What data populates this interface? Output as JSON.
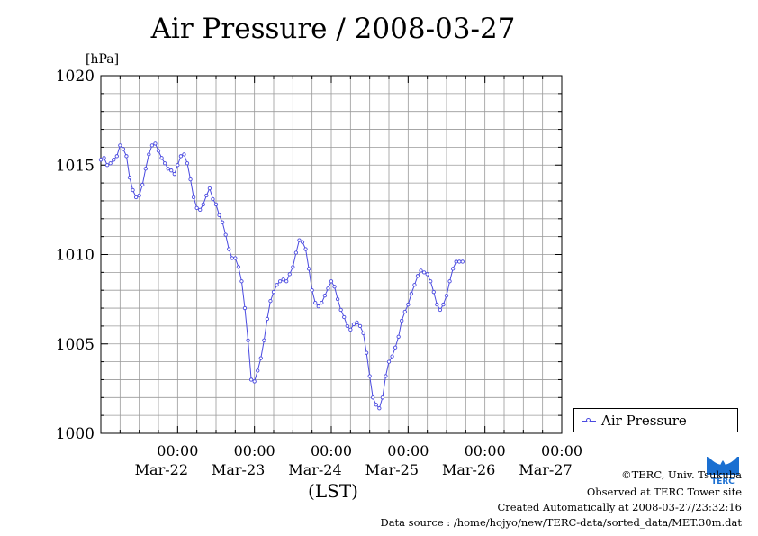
{
  "chart_data": {
    "type": "line",
    "title": "Air Pressure / 2008-03-27",
    "ylabel_unit": "[hPa]",
    "xlabel": "(LST)",
    "ylim": [
      1000,
      1020
    ],
    "yticks": [
      1000,
      1005,
      1010,
      1015,
      1020
    ],
    "x_range_hours": [
      0,
      144
    ],
    "x_ticks": [
      {
        "time": "00:00",
        "date": "Mar-22",
        "hour": 24
      },
      {
        "time": "00:00",
        "date": "Mar-23",
        "hour": 48
      },
      {
        "time": "00:00",
        "date": "Mar-24",
        "hour": 72
      },
      {
        "time": "00:00",
        "date": "Mar-25",
        "hour": 96
      },
      {
        "time": "00:00",
        "date": "Mar-26",
        "hour": 120
      },
      {
        "time": "00:00",
        "date": "Mar-27",
        "hour": 144
      }
    ],
    "grid": true,
    "legend_position": "right",
    "series": [
      {
        "name": "Air Pressure",
        "color": "#4a4ae0",
        "points": [
          [
            0,
            1015.3
          ],
          [
            1,
            1015.4
          ],
          [
            2,
            1015.0
          ],
          [
            3,
            1015.1
          ],
          [
            4,
            1015.3
          ],
          [
            5,
            1015.5
          ],
          [
            6,
            1016.1
          ],
          [
            7,
            1015.9
          ],
          [
            8,
            1015.5
          ],
          [
            9,
            1014.3
          ],
          [
            10,
            1013.6
          ],
          [
            11,
            1013.2
          ],
          [
            12,
            1013.3
          ],
          [
            13,
            1013.9
          ],
          [
            14,
            1014.8
          ],
          [
            15,
            1015.6
          ],
          [
            16,
            1016.1
          ],
          [
            17,
            1016.2
          ],
          [
            18,
            1015.8
          ],
          [
            19,
            1015.4
          ],
          [
            20,
            1015.1
          ],
          [
            21,
            1014.8
          ],
          [
            22,
            1014.7
          ],
          [
            23,
            1014.5
          ],
          [
            24,
            1015.0
          ],
          [
            25,
            1015.5
          ],
          [
            26,
            1015.6
          ],
          [
            27,
            1015.1
          ],
          [
            28,
            1014.2
          ],
          [
            29,
            1013.2
          ],
          [
            30,
            1012.6
          ],
          [
            31,
            1012.5
          ],
          [
            32,
            1012.8
          ],
          [
            33,
            1013.3
          ],
          [
            34,
            1013.7
          ],
          [
            35,
            1013.1
          ],
          [
            36,
            1012.8
          ],
          [
            37,
            1012.2
          ],
          [
            38,
            1011.8
          ],
          [
            39,
            1011.1
          ],
          [
            40,
            1010.3
          ],
          [
            41,
            1009.8
          ],
          [
            42,
            1009.8
          ],
          [
            43,
            1009.3
          ],
          [
            44,
            1008.5
          ],
          [
            45,
            1007.0
          ],
          [
            46,
            1005.2
          ],
          [
            47,
            1003.0
          ],
          [
            48,
            1002.9
          ],
          [
            49,
            1003.5
          ],
          [
            50,
            1004.2
          ],
          [
            51,
            1005.2
          ],
          [
            52,
            1006.4
          ],
          [
            53,
            1007.4
          ],
          [
            54,
            1007.9
          ],
          [
            55,
            1008.3
          ],
          [
            56,
            1008.5
          ],
          [
            57,
            1008.6
          ],
          [
            58,
            1008.5
          ],
          [
            59,
            1008.9
          ],
          [
            60,
            1009.3
          ],
          [
            61,
            1010.1
          ],
          [
            62,
            1010.8
          ],
          [
            63,
            1010.7
          ],
          [
            64,
            1010.3
          ],
          [
            65,
            1009.2
          ],
          [
            66,
            1008.0
          ],
          [
            67,
            1007.3
          ],
          [
            68,
            1007.1
          ],
          [
            69,
            1007.3
          ],
          [
            70,
            1007.7
          ],
          [
            71,
            1008.1
          ],
          [
            72,
            1008.5
          ],
          [
            73,
            1008.2
          ],
          [
            74,
            1007.5
          ],
          [
            75,
            1006.9
          ],
          [
            76,
            1006.5
          ],
          [
            77,
            1006.0
          ],
          [
            78,
            1005.8
          ],
          [
            79,
            1006.1
          ],
          [
            80,
            1006.2
          ],
          [
            81,
            1006.0
          ],
          [
            82,
            1005.6
          ],
          [
            83,
            1004.5
          ],
          [
            84,
            1003.2
          ],
          [
            85,
            1002.0
          ],
          [
            86,
            1001.6
          ],
          [
            87,
            1001.4
          ],
          [
            88,
            1002.0
          ],
          [
            89,
            1003.2
          ],
          [
            90,
            1004.0
          ],
          [
            91,
            1004.3
          ],
          [
            92,
            1004.8
          ],
          [
            93,
            1005.4
          ],
          [
            94,
            1006.3
          ],
          [
            95,
            1006.8
          ],
          [
            96,
            1007.2
          ],
          [
            97,
            1007.8
          ],
          [
            98,
            1008.3
          ],
          [
            99,
            1008.8
          ],
          [
            100,
            1009.1
          ],
          [
            101,
            1009.0
          ],
          [
            102,
            1008.9
          ],
          [
            103,
            1008.5
          ],
          [
            104,
            1007.9
          ],
          [
            105,
            1007.2
          ],
          [
            106,
            1006.9
          ],
          [
            107,
            1007.2
          ],
          [
            108,
            1007.7
          ],
          [
            109,
            1008.5
          ],
          [
            110,
            1009.2
          ],
          [
            111,
            1009.6
          ],
          [
            112,
            1009.6
          ],
          [
            113,
            1009.6
          ]
        ]
      }
    ]
  },
  "legend": {
    "label": "Air Pressure"
  },
  "credits": {
    "copyright": "©TERC, Univ. Tsukuba",
    "site": "Observed at TERC Tower site",
    "created": "Created Automatically at 2008-03-27/23:32:16",
    "source": "Data source : /home/hojyo/new/TERC-data/sorted_data/MET.30m.dat"
  },
  "logo": {
    "text": "TERC",
    "color": "#1a6fd1"
  }
}
